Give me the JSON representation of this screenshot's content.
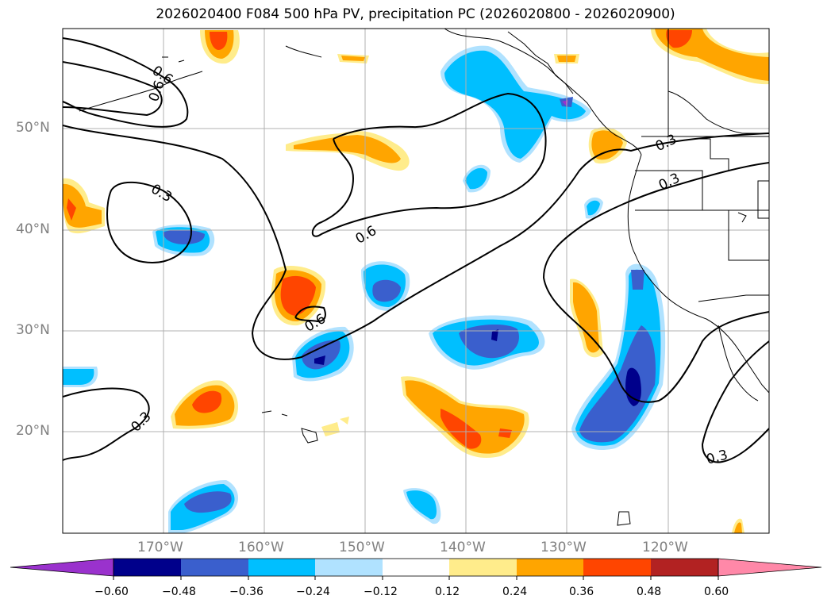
{
  "title": "2026020400 F084 500 hPa PV, precipitation PC (2026020800 - 2026020900)",
  "map": {
    "lat_labels": [
      "50°N",
      "40°N",
      "30°N",
      "20°N"
    ],
    "lon_labels": [
      "170°W",
      "160°W",
      "150°W",
      "140°W",
      "130°W",
      "120°W"
    ],
    "contour_labels": [
      "0.6",
      "0.6",
      "0.3",
      "0.6",
      "0.6",
      "0.3",
      "0.3",
      "0.3",
      "0.3"
    ],
    "land_color": "#ffffff",
    "grid_color": "#b0b0b0"
  },
  "colorbar": {
    "ticks": [
      "−0.60",
      "−0.48",
      "−0.36",
      "−0.24",
      "−0.12",
      "0.12",
      "0.24",
      "0.36",
      "0.48",
      "0.60"
    ],
    "colors": [
      "#9a32cd",
      "#00008b",
      "#3a5fcd",
      "#00bfff",
      "#b0e2ff",
      "#ffffff",
      "#ffec8b",
      "#ffa500",
      "#ff4500",
      "#b22222",
      "#ff88a8"
    ]
  }
}
